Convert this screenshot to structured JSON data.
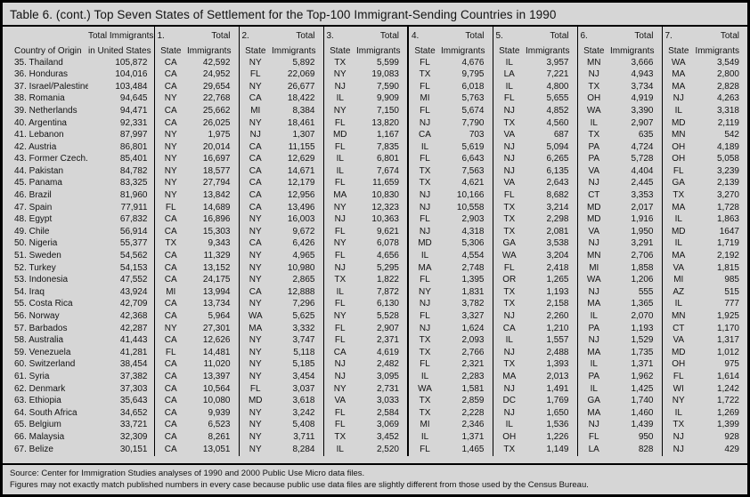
{
  "title": "Table 6. (cont.) Top Seven States of Settlement for the Top-100 Immigrant-Sending Countries in 1990",
  "header": {
    "country": "Country of Origin",
    "total_line1": "Total Immigrants",
    "total_line2": "in United States",
    "group_numbers": [
      "1.",
      "2.",
      "3.",
      "4.",
      "5.",
      "6.",
      "7."
    ],
    "state_label": "State",
    "total_label": "Total",
    "immigrants_label": "Immigrants"
  },
  "rows": [
    {
      "country": "35. Thailand",
      "total": "105,872",
      "pairs": [
        [
          "CA",
          "42,592"
        ],
        [
          "NY",
          "5,892"
        ],
        [
          "TX",
          "5,599"
        ],
        [
          "FL",
          "4,676"
        ],
        [
          "IL",
          "3,957"
        ],
        [
          "MN",
          "3,666"
        ],
        [
          "WA",
          "3,549"
        ]
      ]
    },
    {
      "country": "36. Honduras",
      "total": "104,016",
      "pairs": [
        [
          "CA",
          "24,952"
        ],
        [
          "FL",
          "22,069"
        ],
        [
          "NY",
          "19,083"
        ],
        [
          "TX",
          "9,795"
        ],
        [
          "LA",
          "7,221"
        ],
        [
          "NJ",
          "4,943"
        ],
        [
          "MA",
          "2,800"
        ]
      ]
    },
    {
      "country": "37. Israel/Palestine",
      "total": "103,484",
      "pairs": [
        [
          "CA",
          "29,654"
        ],
        [
          "NY",
          "26,677"
        ],
        [
          "NJ",
          "7,590"
        ],
        [
          "FL",
          "6,018"
        ],
        [
          "IL",
          "4,800"
        ],
        [
          "TX",
          "3,734"
        ],
        [
          "MA",
          "2,828"
        ]
      ]
    },
    {
      "country": "38. Romania",
      "total": "94,645",
      "pairs": [
        [
          "NY",
          "22,768"
        ],
        [
          "CA",
          "18,422"
        ],
        [
          "IL",
          "9,909"
        ],
        [
          "MI",
          "5,763"
        ],
        [
          "FL",
          "5,655"
        ],
        [
          "OH",
          "4,919"
        ],
        [
          "NJ",
          "4,263"
        ]
      ]
    },
    {
      "country": "39. Netherlands",
      "total": "94,471",
      "pairs": [
        [
          "CA",
          "25,662"
        ],
        [
          "MI",
          "8,384"
        ],
        [
          "NY",
          "7,150"
        ],
        [
          "FL",
          "5,674"
        ],
        [
          "NJ",
          "4,852"
        ],
        [
          "WA",
          "3,390"
        ],
        [
          "IL",
          "3,318"
        ]
      ]
    },
    {
      "country": "40. Argentina",
      "total": "92,331",
      "pairs": [
        [
          "CA",
          "26,025"
        ],
        [
          "NY",
          "18,461"
        ],
        [
          "FL",
          "13,820"
        ],
        [
          "NJ",
          "7,790"
        ],
        [
          "TX",
          "4,560"
        ],
        [
          "IL",
          "2,907"
        ],
        [
          "MD",
          "2,119"
        ]
      ]
    },
    {
      "country": "41. Lebanon",
      "total": "87,997",
      "pairs": [
        [
          "NY",
          "1,975"
        ],
        [
          "NJ",
          "1,307"
        ],
        [
          "MD",
          "1,167"
        ],
        [
          "CA",
          "703"
        ],
        [
          "VA",
          "687"
        ],
        [
          "TX",
          "635"
        ],
        [
          "MN",
          "542"
        ]
      ]
    },
    {
      "country": "42. Austria",
      "total": "86,801",
      "pairs": [
        [
          "NY",
          "20,014"
        ],
        [
          "CA",
          "11,155"
        ],
        [
          "FL",
          "7,835"
        ],
        [
          "IL",
          "5,619"
        ],
        [
          "NJ",
          "5,094"
        ],
        [
          "PA",
          "4,724"
        ],
        [
          "OH",
          "4,189"
        ]
      ]
    },
    {
      "country": "43. Former Czech.",
      "total": "85,401",
      "pairs": [
        [
          "NY",
          "16,697"
        ],
        [
          "CA",
          "12,629"
        ],
        [
          "IL",
          "6,801"
        ],
        [
          "FL",
          "6,643"
        ],
        [
          "NJ",
          "6,265"
        ],
        [
          "PA",
          "5,728"
        ],
        [
          "OH",
          "5,058"
        ]
      ]
    },
    {
      "country": "44. Pakistan",
      "total": "84,782",
      "pairs": [
        [
          "NY",
          "18,577"
        ],
        [
          "CA",
          "14,671"
        ],
        [
          "IL",
          "7,674"
        ],
        [
          "TX",
          "7,563"
        ],
        [
          "NJ",
          "6,135"
        ],
        [
          "VA",
          "4,404"
        ],
        [
          "FL",
          "3,239"
        ]
      ]
    },
    {
      "country": "45. Panama",
      "total": "83,325",
      "pairs": [
        [
          "NY",
          "27,794"
        ],
        [
          "CA",
          "12,179"
        ],
        [
          "FL",
          "11,659"
        ],
        [
          "TX",
          "4,621"
        ],
        [
          "VA",
          "2,643"
        ],
        [
          "NJ",
          "2,445"
        ],
        [
          "GA",
          "2,139"
        ]
      ]
    },
    {
      "country": "46. Brazil",
      "total": "81,960",
      "pairs": [
        [
          "NY",
          "13,842"
        ],
        [
          "CA",
          "12,956"
        ],
        [
          "MA",
          "10,830"
        ],
        [
          "NJ",
          "10,166"
        ],
        [
          "FL",
          "8,682"
        ],
        [
          "CT",
          "3,353"
        ],
        [
          "TX",
          "3,270"
        ]
      ]
    },
    {
      "country": "47. Spain",
      "total": "77,911",
      "pairs": [
        [
          "FL",
          "14,689"
        ],
        [
          "CA",
          "13,496"
        ],
        [
          "NY",
          "12,323"
        ],
        [
          "NJ",
          "10,558"
        ],
        [
          "TX",
          "3,214"
        ],
        [
          "MD",
          "2,017"
        ],
        [
          "MA",
          "1,728"
        ]
      ]
    },
    {
      "country": "48. Egypt",
      "total": "67,832",
      "pairs": [
        [
          "CA",
          "16,896"
        ],
        [
          "NY",
          "16,003"
        ],
        [
          "NJ",
          "10,363"
        ],
        [
          "FL",
          "2,903"
        ],
        [
          "TX",
          "2,298"
        ],
        [
          "MD",
          "1,916"
        ],
        [
          "IL",
          "1,863"
        ]
      ]
    },
    {
      "country": "49. Chile",
      "total": "56,914",
      "pairs": [
        [
          "CA",
          "15,303"
        ],
        [
          "NY",
          "9,672"
        ],
        [
          "FL",
          "9,621"
        ],
        [
          "NJ",
          "4,318"
        ],
        [
          "TX",
          "2,081"
        ],
        [
          "VA",
          "1,950"
        ],
        [
          "MD",
          "1647"
        ]
      ]
    },
    {
      "country": "50. Nigeria",
      "total": "55,377",
      "pairs": [
        [
          "TX",
          "9,343"
        ],
        [
          "CA",
          "6,426"
        ],
        [
          "NY",
          "6,078"
        ],
        [
          "MD",
          "5,306"
        ],
        [
          "GA",
          "3,538"
        ],
        [
          "NJ",
          "3,291"
        ],
        [
          "IL",
          "1,719"
        ]
      ]
    },
    {
      "country": "51. Sweden",
      "total": "54,562",
      "pairs": [
        [
          "CA",
          "11,329"
        ],
        [
          "NY",
          "4,965"
        ],
        [
          "FL",
          "4,656"
        ],
        [
          "IL",
          "4,554"
        ],
        [
          "WA",
          "3,204"
        ],
        [
          "MN",
          "2,706"
        ],
        [
          "MA",
          "2,192"
        ]
      ]
    },
    {
      "country": "52. Turkey",
      "total": "54,153",
      "pairs": [
        [
          "CA",
          "13,152"
        ],
        [
          "NY",
          "10,980"
        ],
        [
          "NJ",
          "5,295"
        ],
        [
          "MA",
          "2,748"
        ],
        [
          "FL",
          "2,418"
        ],
        [
          "MI",
          "1,858"
        ],
        [
          "VA",
          "1,815"
        ]
      ]
    },
    {
      "country": "53. Indonesia",
      "total": "47,552",
      "pairs": [
        [
          "CA",
          "24,175"
        ],
        [
          "NY",
          "2,865"
        ],
        [
          "TX",
          "1,822"
        ],
        [
          "FL",
          "1,395"
        ],
        [
          "OR",
          "1,265"
        ],
        [
          "WA",
          "1,206"
        ],
        [
          "MI",
          "985"
        ]
      ]
    },
    {
      "country": "54. Iraq",
      "total": "43,924",
      "pairs": [
        [
          "MI",
          "13,994"
        ],
        [
          "CA",
          "12,888"
        ],
        [
          "IL",
          "7,872"
        ],
        [
          "NY",
          "1,831"
        ],
        [
          "TX",
          "1,193"
        ],
        [
          "NJ",
          "555"
        ],
        [
          "AZ",
          "515"
        ]
      ]
    },
    {
      "country": "55. Costa Rica",
      "total": "42,709",
      "pairs": [
        [
          "CA",
          "13,734"
        ],
        [
          "NY",
          "7,296"
        ],
        [
          "FL",
          "6,130"
        ],
        [
          "NJ",
          "3,782"
        ],
        [
          "TX",
          "2,158"
        ],
        [
          "MA",
          "1,365"
        ],
        [
          "IL",
          "777"
        ]
      ]
    },
    {
      "country": "56. Norway",
      "total": "42,368",
      "pairs": [
        [
          "CA",
          "5,964"
        ],
        [
          "WA",
          "5,625"
        ],
        [
          "NY",
          "5,528"
        ],
        [
          "FL",
          "3,327"
        ],
        [
          "NJ",
          "2,260"
        ],
        [
          "IL",
          "2,070"
        ],
        [
          "MN",
          "1,925"
        ]
      ]
    },
    {
      "country": "57. Barbados",
      "total": "42,287",
      "pairs": [
        [
          "NY",
          "27,301"
        ],
        [
          "MA",
          "3,332"
        ],
        [
          "FL",
          "2,907"
        ],
        [
          "NJ",
          "1,624"
        ],
        [
          "CA",
          "1,210"
        ],
        [
          "PA",
          "1,193"
        ],
        [
          "CT",
          "1,170"
        ]
      ]
    },
    {
      "country": "58. Australia",
      "total": "41,443",
      "pairs": [
        [
          "CA",
          "12,626"
        ],
        [
          "NY",
          "3,747"
        ],
        [
          "FL",
          "2,371"
        ],
        [
          "TX",
          "2,093"
        ],
        [
          "IL",
          "1,557"
        ],
        [
          "NJ",
          "1,529"
        ],
        [
          "VA",
          "1,317"
        ]
      ]
    },
    {
      "country": "59. Venezuela",
      "total": "41,281",
      "pairs": [
        [
          "FL",
          "14,481"
        ],
        [
          "NY",
          "5,118"
        ],
        [
          "CA",
          "4,619"
        ],
        [
          "TX",
          "2,766"
        ],
        [
          "NJ",
          "2,488"
        ],
        [
          "MA",
          "1,735"
        ],
        [
          "MD",
          "1,012"
        ]
      ]
    },
    {
      "country": "60. Switzerland",
      "total": "38,454",
      "pairs": [
        [
          "CA",
          "11,020"
        ],
        [
          "NY",
          "5,185"
        ],
        [
          "NJ",
          "2,482"
        ],
        [
          "FL",
          "2,321"
        ],
        [
          "TX",
          "1,393"
        ],
        [
          "IL",
          "1,371"
        ],
        [
          "OH",
          "975"
        ]
      ]
    },
    {
      "country": "61. Syria",
      "total": "37,382",
      "pairs": [
        [
          "CA",
          "13,397"
        ],
        [
          "NY",
          "3,454"
        ],
        [
          "NJ",
          "3,095"
        ],
        [
          "IL",
          "2,283"
        ],
        [
          "MA",
          "2,013"
        ],
        [
          "PA",
          "1,962"
        ],
        [
          "FL",
          "1,614"
        ]
      ]
    },
    {
      "country": "62. Denmark",
      "total": "37,303",
      "pairs": [
        [
          "CA",
          "10,564"
        ],
        [
          "FL",
          "3,037"
        ],
        [
          "NY",
          "2,731"
        ],
        [
          "WA",
          "1,581"
        ],
        [
          "NJ",
          "1,491"
        ],
        [
          "IL",
          "1,425"
        ],
        [
          "WI",
          "1,242"
        ]
      ]
    },
    {
      "country": "63. Ethiopia",
      "total": "35,643",
      "pairs": [
        [
          "CA",
          "10,080"
        ],
        [
          "MD",
          "3,618"
        ],
        [
          "VA",
          "3,033"
        ],
        [
          "TX",
          "2,859"
        ],
        [
          "DC",
          "1,769"
        ],
        [
          "GA",
          "1,740"
        ],
        [
          "NY",
          "1,722"
        ]
      ]
    },
    {
      "country": "64. South Africa",
      "total": "34,652",
      "pairs": [
        [
          "CA",
          "9,939"
        ],
        [
          "NY",
          "3,242"
        ],
        [
          "FL",
          "2,584"
        ],
        [
          "TX",
          "2,228"
        ],
        [
          "NJ",
          "1,650"
        ],
        [
          "MA",
          "1,460"
        ],
        [
          "IL",
          "1,269"
        ]
      ]
    },
    {
      "country": "65. Belgium",
      "total": "33,721",
      "pairs": [
        [
          "CA",
          "6,523"
        ],
        [
          "NY",
          "5,408"
        ],
        [
          "FL",
          "3,069"
        ],
        [
          "MI",
          "2,346"
        ],
        [
          "IL",
          "1,536"
        ],
        [
          "NJ",
          "1,439"
        ],
        [
          "TX",
          "1,399"
        ]
      ]
    },
    {
      "country": "66. Malaysia",
      "total": "32,309",
      "pairs": [
        [
          "CA",
          "8,261"
        ],
        [
          "NY",
          "3,711"
        ],
        [
          "TX",
          "3,452"
        ],
        [
          "IL",
          "1,371"
        ],
        [
          "OH",
          "1,226"
        ],
        [
          "FL",
          "950"
        ],
        [
          "NJ",
          "928"
        ]
      ]
    },
    {
      "country": "67. Belize",
      "total": "30,151",
      "pairs": [
        [
          "CA",
          "13,051"
        ],
        [
          "NY",
          "8,284"
        ],
        [
          "IL",
          "2,520"
        ],
        [
          "FL",
          "1,465"
        ],
        [
          "TX",
          "1,149"
        ],
        [
          "LA",
          "828"
        ],
        [
          "NJ",
          "429"
        ]
      ]
    }
  ],
  "footer": {
    "source": "Source: Center for Immigration Studies analyses of 1990 and 2000 Public Use Micro data files.",
    "note": "Figures may not exactly match published numbers in every case because public use data files are slightly different from those used by the Census Bureau."
  },
  "colors": {
    "background": "#d6d6d6",
    "border": "#000000",
    "text": "#121212"
  }
}
